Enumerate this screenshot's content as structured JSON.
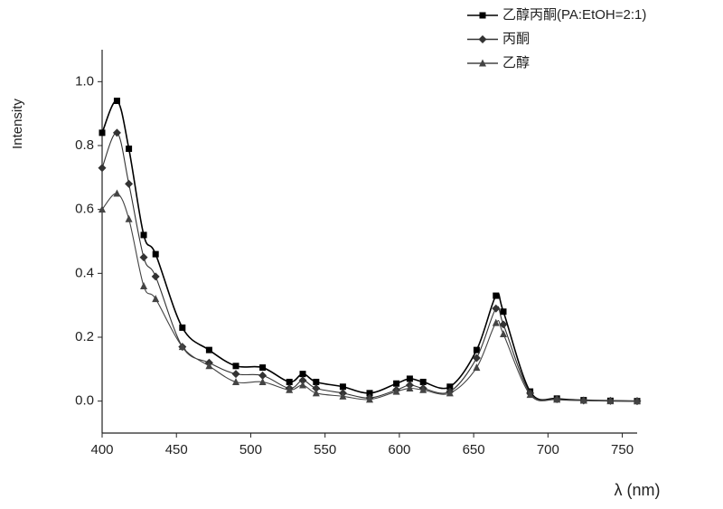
{
  "chart_data": {
    "type": "line",
    "x_label": "λ (nm)",
    "y_label": "Intensity",
    "x": [
      400,
      410,
      418,
      428,
      436,
      454,
      472,
      490,
      508,
      526,
      535,
      544,
      562,
      580,
      598,
      607,
      616,
      634,
      652,
      665,
      670,
      688,
      706,
      724,
      742,
      760
    ],
    "series": [
      {
        "name": "乙醇丙酮(PA:EtOH=2:1)",
        "color": "#000000",
        "marker": "square",
        "values": [
          0.84,
          0.94,
          0.79,
          0.52,
          0.46,
          0.23,
          0.16,
          0.11,
          0.105,
          0.06,
          0.085,
          0.06,
          0.045,
          0.025,
          0.055,
          0.07,
          0.06,
          0.045,
          0.16,
          0.33,
          0.28,
          0.03,
          0.008,
          0.003,
          0.001,
          0
        ]
      },
      {
        "name": "丙酮",
        "color": "#333333",
        "marker": "diamond",
        "values": [
          0.73,
          0.84,
          0.68,
          0.45,
          0.39,
          0.17,
          0.12,
          0.085,
          0.08,
          0.04,
          0.065,
          0.04,
          0.025,
          0.01,
          0.035,
          0.05,
          0.04,
          0.03,
          0.135,
          0.29,
          0.24,
          0.025,
          0.006,
          0.002,
          0.001,
          0
        ]
      },
      {
        "name": "乙醇",
        "color": "#444444",
        "marker": "triangle",
        "values": [
          0.6,
          0.65,
          0.57,
          0.36,
          0.32,
          0.17,
          0.11,
          0.06,
          0.06,
          0.035,
          0.05,
          0.025,
          0.015,
          0.005,
          0.03,
          0.04,
          0.035,
          0.025,
          0.105,
          0.245,
          0.21,
          0.02,
          0.005,
          0.002,
          0,
          0
        ]
      }
    ],
    "xlim": [
      400,
      760
    ],
    "ylim": [
      -0.1,
      1.1
    ],
    "xticks": [
      400,
      450,
      500,
      550,
      600,
      650,
      700,
      750
    ],
    "yticks": [
      {
        "value": 0,
        "label": "0.0"
      },
      {
        "value": 0.2,
        "label": "0.2"
      },
      {
        "value": 0.4,
        "label": "0.4"
      },
      {
        "value": 0.6,
        "label": "0.6"
      },
      {
        "value": 0.8,
        "label": "0.8"
      },
      {
        "value": 1,
        "label": "1.0"
      }
    ],
    "grid": false,
    "legend": "top-right"
  }
}
